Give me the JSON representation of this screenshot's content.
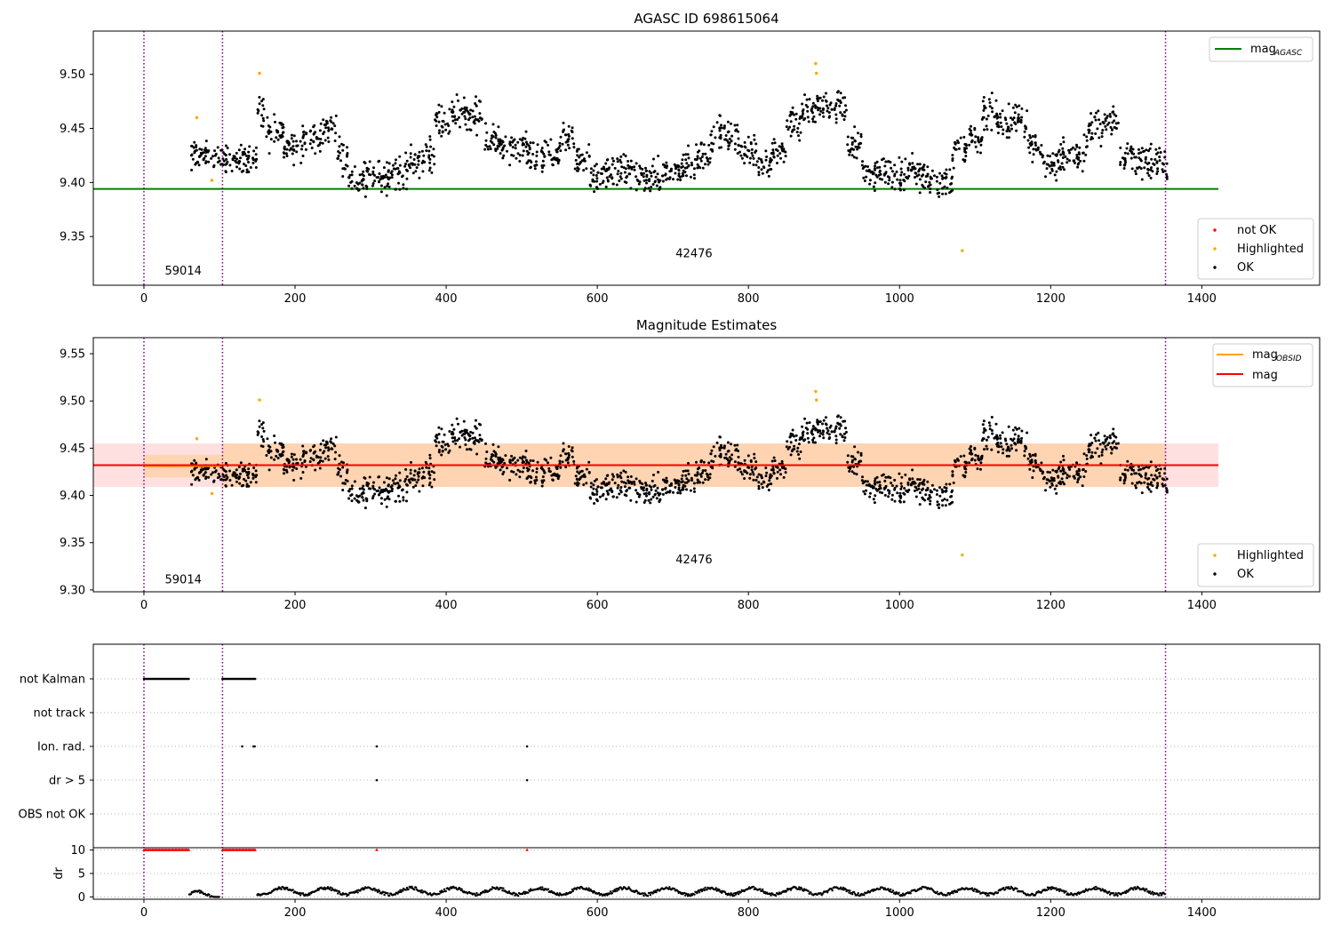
{
  "chart_data": [
    {
      "type": "scatter",
      "title": "AGASC ID 698615064",
      "xlim": [
        -67,
        1556
      ],
      "ylim": [
        9.305,
        9.54
      ],
      "xticks": [
        0,
        200,
        400,
        600,
        800,
        1000,
        1200,
        1400
      ],
      "yticks": [
        9.35,
        9.4,
        9.45,
        9.5
      ],
      "ytick_labels": [
        "9.35",
        "9.40",
        "9.45",
        "9.50"
      ],
      "obsid_boundaries": [
        0,
        104,
        1352
      ],
      "obsid_labels": [
        {
          "text": "59014",
          "x": 52,
          "y": 9.315
        },
        {
          "text": "42476",
          "x": 728,
          "y": 9.331
        }
      ],
      "mag_agasc": {
        "name": "mag_AGASC",
        "y": 9.394,
        "x_range": [
          -67,
          1422
        ],
        "color": "#008000"
      },
      "legend_top": [
        {
          "label": "mag",
          "subscript": "AGASC",
          "color": "#008000"
        }
      ],
      "legend_bottom": [
        {
          "label": "not OK",
          "color": "#ff0000"
        },
        {
          "label": "Highlighted",
          "color": "#ffa500"
        },
        {
          "label": "OK",
          "color": "#000000"
        }
      ],
      "highlighted_points": [
        [
          70,
          9.46
        ],
        [
          90,
          9.402
        ],
        [
          153,
          9.501
        ],
        [
          889,
          9.51
        ],
        [
          890,
          9.501
        ],
        [
          1083,
          9.337
        ]
      ],
      "ok_segments": [
        [
          60,
          9.425,
          0.012,
          0.012
        ],
        [
          92,
          9.422,
          0.012,
          0.01
        ],
        [
          150,
          9.465,
          0.015,
          0.015
        ],
        [
          160,
          9.445,
          0.015,
          0.014
        ],
        [
          185,
          9.435,
          0.015,
          0.014
        ],
        [
          210,
          9.44,
          0.015,
          0.013
        ],
        [
          235,
          9.45,
          0.015,
          0.012
        ],
        [
          255,
          9.425,
          0.015,
          0.012
        ],
        [
          270,
          9.405,
          0.015,
          0.012
        ],
        [
          300,
          9.405,
          0.015,
          0.012
        ],
        [
          330,
          9.41,
          0.015,
          0.012
        ],
        [
          350,
          9.42,
          0.015,
          0.012
        ],
        [
          370,
          9.425,
          0.015,
          0.012
        ],
        [
          385,
          9.455,
          0.015,
          0.012
        ],
        [
          405,
          9.465,
          0.015,
          0.012
        ],
        [
          430,
          9.46,
          0.015,
          0.012
        ],
        [
          450,
          9.44,
          0.015,
          0.012
        ],
        [
          470,
          9.43,
          0.015,
          0.012
        ],
        [
          490,
          9.43,
          0.015,
          0.012
        ],
        [
          510,
          9.42,
          0.015,
          0.012
        ],
        [
          530,
          9.425,
          0.015,
          0.012
        ],
        [
          550,
          9.44,
          0.015,
          0.012
        ],
        [
          570,
          9.42,
          0.015,
          0.012
        ],
        [
          590,
          9.405,
          0.015,
          0.012
        ],
        [
          610,
          9.41,
          0.015,
          0.012
        ],
        [
          630,
          9.41,
          0.015,
          0.012
        ],
        [
          650,
          9.405,
          0.015,
          0.012
        ],
        [
          670,
          9.405,
          0.015,
          0.012
        ],
        [
          690,
          9.41,
          0.015,
          0.012
        ],
        [
          710,
          9.415,
          0.015,
          0.012
        ],
        [
          730,
          9.425,
          0.015,
          0.012
        ],
        [
          750,
          9.445,
          0.015,
          0.012
        ],
        [
          770,
          9.44,
          0.015,
          0.012
        ],
        [
          790,
          9.43,
          0.015,
          0.012
        ],
        [
          810,
          9.42,
          0.015,
          0.012
        ],
        [
          830,
          9.43,
          0.015,
          0.012
        ],
        [
          850,
          9.455,
          0.015,
          0.012
        ],
        [
          870,
          9.465,
          0.015,
          0.012
        ],
        [
          890,
          9.47,
          0.015,
          0.012
        ],
        [
          910,
          9.47,
          0.015,
          0.012
        ],
        [
          930,
          9.435,
          0.015,
          0.012
        ],
        [
          950,
          9.41,
          0.015,
          0.012
        ],
        [
          970,
          9.41,
          0.015,
          0.012
        ],
        [
          990,
          9.405,
          0.015,
          0.012
        ],
        [
          1010,
          9.41,
          0.015,
          0.012
        ],
        [
          1030,
          9.405,
          0.015,
          0.012
        ],
        [
          1050,
          9.4,
          0.015,
          0.012
        ],
        [
          1070,
          9.43,
          0.015,
          0.012
        ],
        [
          1090,
          9.44,
          0.015,
          0.012
        ],
        [
          1110,
          9.465,
          0.015,
          0.012
        ],
        [
          1130,
          9.455,
          0.015,
          0.012
        ],
        [
          1150,
          9.455,
          0.015,
          0.012
        ],
        [
          1170,
          9.435,
          0.015,
          0.012
        ],
        [
          1190,
          9.415,
          0.015,
          0.012
        ],
        [
          1210,
          9.425,
          0.015,
          0.012
        ],
        [
          1230,
          9.43,
          0.015,
          0.012
        ],
        [
          1250,
          9.45,
          0.015,
          0.012
        ],
        [
          1270,
          9.46,
          0.015,
          0.012
        ],
        [
          1290,
          9.425,
          0.015,
          0.012
        ],
        [
          1310,
          9.42,
          0.015,
          0.012
        ],
        [
          1330,
          9.42,
          0.015,
          0.012
        ],
        [
          1350,
          9.415,
          0.015,
          0.012
        ]
      ]
    },
    {
      "type": "scatter",
      "title": "Magnitude Estimates",
      "xlim": [
        -67,
        1556
      ],
      "ylim": [
        9.298,
        9.567
      ],
      "xticks": [
        0,
        200,
        400,
        600,
        800,
        1000,
        1200,
        1400
      ],
      "yticks": [
        9.3,
        9.35,
        9.4,
        9.45,
        9.5,
        9.55
      ],
      "ytick_labels": [
        "9.30",
        "9.35",
        "9.40",
        "9.45",
        "9.50",
        "9.55"
      ],
      "obsid_boundaries": [
        0,
        104,
        1352
      ],
      "obsid_labels": [
        {
          "text": "59014",
          "x": 52,
          "y": 9.307
        },
        {
          "text": "42476",
          "x": 728,
          "y": 9.328
        }
      ],
      "mag": {
        "name": "mag",
        "value": 9.432,
        "band": [
          9.409,
          9.455
        ],
        "x_range": [
          -67,
          1422
        ],
        "color": "#ff0000"
      },
      "mag_obsid": [
        {
          "obsid": "59014",
          "value": 9.431,
          "band": [
            9.419,
            9.443
          ],
          "x_range": [
            0,
            104
          ]
        },
        {
          "obsid": "42476",
          "value": 9.432,
          "band": [
            9.409,
            9.455
          ],
          "x_range": [
            104,
            1352
          ]
        }
      ],
      "legend_top": [
        {
          "label": "mag",
          "subscript": "OBSID",
          "color": "#ffa500"
        },
        {
          "label": "mag",
          "subscript": "",
          "color": "#ff0000"
        }
      ],
      "legend_bottom": [
        {
          "label": "Highlighted",
          "color": "#ffa500"
        },
        {
          "label": "OK",
          "color": "#000000"
        }
      ]
    },
    {
      "type": "scatter",
      "xlim": [
        -67,
        1556
      ],
      "flag_rows": [
        "not Kalman",
        "not track",
        "Ion. rad.",
        "dr > 5",
        "OBS not OK"
      ],
      "flag_points": {
        "not Kalman": [
          [
            0,
            60
          ],
          [
            104,
            148
          ]
        ],
        "not track": [],
        "Ion. rad.": [
          [
            130,
            130
          ],
          [
            145,
            148
          ],
          [
            308,
            308
          ],
          [
            507,
            507
          ]
        ],
        "dr > 5": [
          [
            308,
            308
          ],
          [
            507,
            507
          ]
        ],
        "OBS not OK": []
      },
      "dr_ylabel": "dr",
      "dr_yticks": [
        0,
        5,
        10
      ],
      "dr_ylim": [
        -0.5,
        10.5
      ],
      "dr_capped": [
        [
          0,
          60
        ],
        [
          104,
          148
        ],
        [
          308,
          308
        ],
        [
          507,
          507
        ]
      ],
      "dr_segments": [
        [
          60,
          100,
          0.4
        ],
        [
          150,
          1352,
          1.2
        ]
      ],
      "xticks": [
        0,
        200,
        400,
        600,
        800,
        1000,
        1200,
        1400
      ],
      "obsid_boundaries": [
        0,
        104,
        1352
      ]
    }
  ]
}
